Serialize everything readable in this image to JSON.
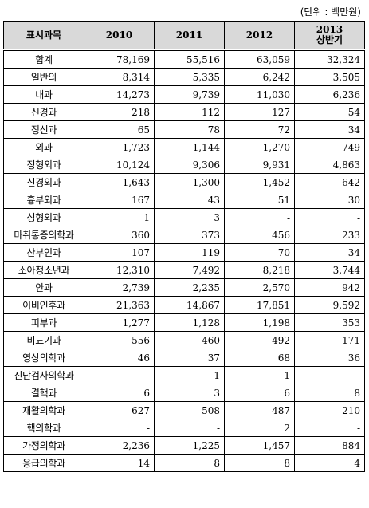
{
  "unit_note": "(단위 : 백만원)",
  "columns": [
    "표시과목",
    "2010",
    "2011",
    "2012",
    "2013",
    "상반기"
  ],
  "rows": [
    [
      "합계",
      "78,169",
      "55,516",
      "63,059",
      "32,324"
    ],
    [
      "일반의",
      "8,314",
      "5,335",
      "6,242",
      "3,505"
    ],
    [
      "내과",
      "14,273",
      "9,739",
      "11,030",
      "6,236"
    ],
    [
      "신경과",
      "218",
      "112",
      "127",
      "54"
    ],
    [
      "정신과",
      "65",
      "78",
      "72",
      "34"
    ],
    [
      "외과",
      "1,723",
      "1,144",
      "1,270",
      "749"
    ],
    [
      "정형외과",
      "10,124",
      "9,306",
      "9,931",
      "4,863"
    ],
    [
      "신경외과",
      "1,643",
      "1,300",
      "1,452",
      "642"
    ],
    [
      "흉부외과",
      "167",
      "43",
      "51",
      "30"
    ],
    [
      "성형외과",
      "1",
      "3",
      "-",
      "-"
    ],
    [
      "마취통증의학과",
      "360",
      "373",
      "456",
      "233"
    ],
    [
      "산부인과",
      "107",
      "119",
      "70",
      "34"
    ],
    [
      "소아청소년과",
      "12,310",
      "7,492",
      "8,218",
      "3,744"
    ],
    [
      "안과",
      "2,739",
      "2,235",
      "2,570",
      "942"
    ],
    [
      "이비인후과",
      "21,363",
      "14,867",
      "17,851",
      "9,592"
    ],
    [
      "피부과",
      "1,277",
      "1,128",
      "1,198",
      "353"
    ],
    [
      "비뇨기과",
      "556",
      "460",
      "492",
      "171"
    ],
    [
      "영상의학과",
      "46",
      "37",
      "68",
      "36"
    ],
    [
      "진단검사의학과",
      "-",
      "1",
      "1",
      "-"
    ],
    [
      "결핵과",
      "6",
      "3",
      "6",
      "8"
    ],
    [
      "재활의학과",
      "627",
      "508",
      "487",
      "210"
    ],
    [
      "핵의학과",
      "-",
      "-",
      "2",
      "-"
    ],
    [
      "가정의학과",
      "2,236",
      "1,225",
      "1,457",
      "884"
    ],
    [
      "응급의학과",
      "14",
      "8",
      "8",
      "4"
    ]
  ]
}
